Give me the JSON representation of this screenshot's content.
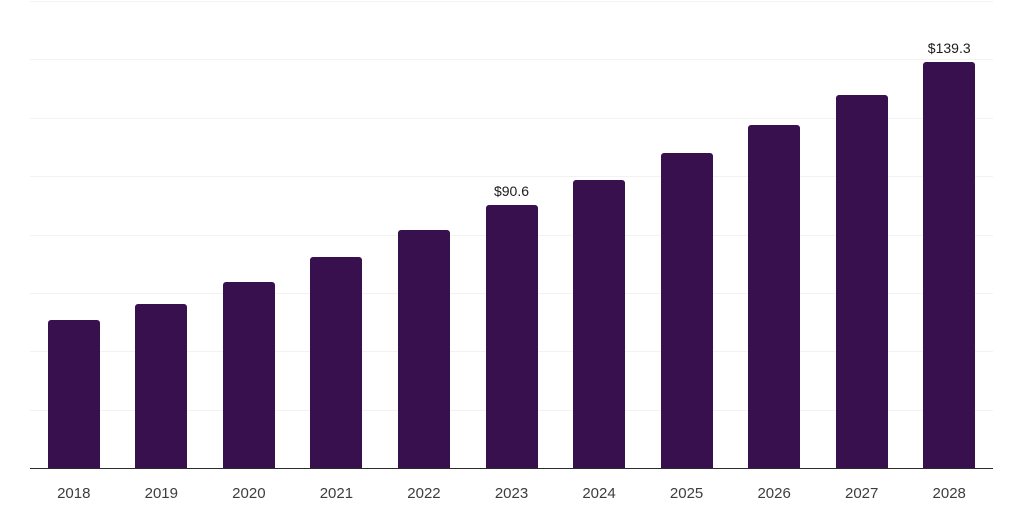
{
  "chart_data": {
    "type": "bar",
    "title": "",
    "xlabel": "",
    "ylabel": "",
    "categories": [
      "2018",
      "2019",
      "2020",
      "2021",
      "2022",
      "2023",
      "2024",
      "2025",
      "2026",
      "2027",
      "2028"
    ],
    "values": [
      51.1,
      56.6,
      64.1,
      72.7,
      81.9,
      90.6,
      99.0,
      108.3,
      117.9,
      128.2,
      139.3
    ],
    "data_labels": {
      "2023": "$90.6",
      "2028": "$139.3"
    },
    "value_prefix": "$",
    "ylim": [
      0,
      160
    ],
    "grid_step": 20,
    "grid": "horizontal-only",
    "legend": "none",
    "bar_color": "#37104D"
  },
  "style": {
    "background_color": "#ffffff",
    "grid_color": "#f2f2f4",
    "axis_color": "#2b2b2b",
    "x_label_color": "#3d3d3d",
    "value_label_color": "#1c1c1c"
  }
}
